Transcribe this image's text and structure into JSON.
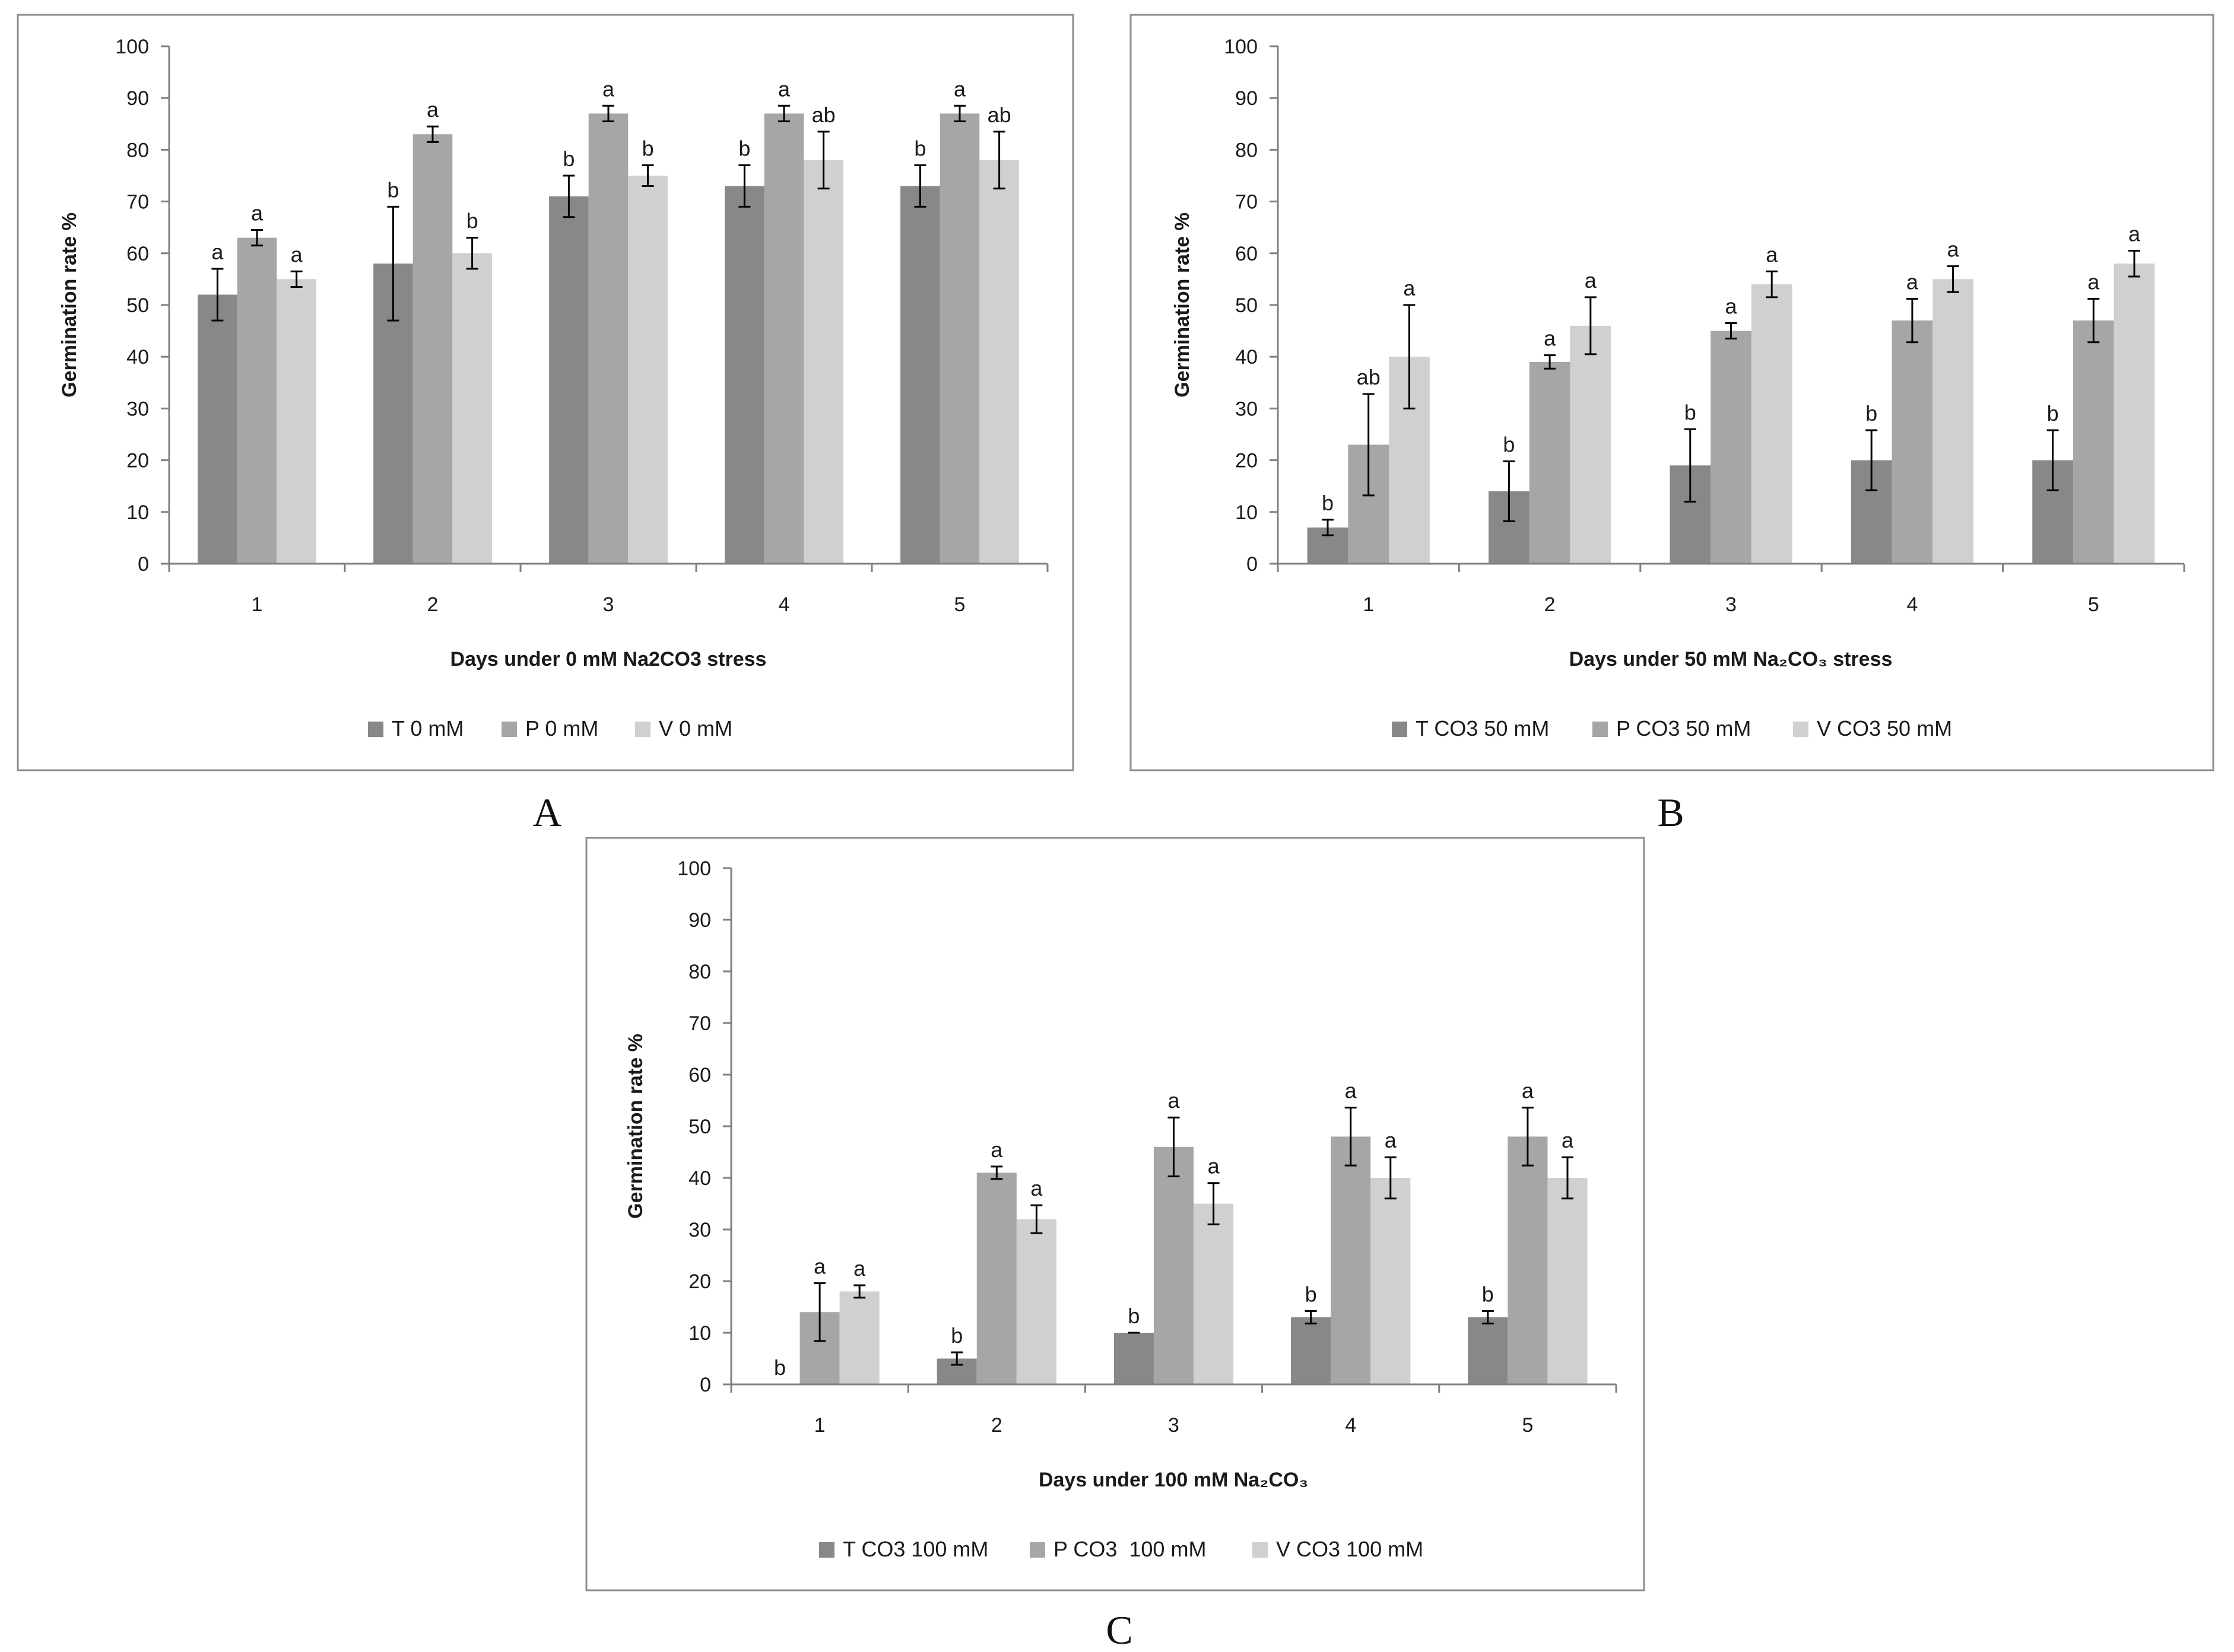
{
  "figure": {
    "colors": [
      "#888888",
      "#a6a6a6",
      "#d0d0d0"
    ]
  },
  "chart_data": [
    {
      "type": "bar",
      "panel_label": "A",
      "categories": [
        "1",
        "2",
        "3",
        "4",
        "5"
      ],
      "xlabel": "Days under 0 mM Na2CO3 stress",
      "ylabel": "Germination rate %",
      "ylim": [
        0,
        100
      ],
      "yticks": [
        "0",
        "10",
        "20",
        "30",
        "40",
        "50",
        "60",
        "70",
        "80",
        "90",
        "100"
      ],
      "series": [
        {
          "name": "T 0 mM",
          "values": [
            52,
            58,
            71,
            73,
            73
          ],
          "errors": [
            5,
            11,
            4,
            4,
            4
          ],
          "letters": [
            "a",
            "b",
            "b",
            "b",
            "b"
          ]
        },
        {
          "name": "P 0 mM",
          "values": [
            63,
            83,
            87,
            87,
            87
          ],
          "errors": [
            1.5,
            1.5,
            1.5,
            1.5,
            1.5
          ],
          "letters": [
            "a",
            "a",
            "a",
            "a",
            "a"
          ]
        },
        {
          "name": "V 0 mM",
          "values": [
            55,
            60,
            75,
            78,
            78
          ],
          "errors": [
            1.5,
            3,
            2,
            5.5,
            5.5
          ],
          "letters": [
            "a",
            "b",
            "b",
            "ab",
            "ab"
          ]
        }
      ]
    },
    {
      "type": "bar",
      "panel_label": "B",
      "categories": [
        "1",
        "2",
        "3",
        "4",
        "5"
      ],
      "xlabel": "Days under 50 mM Na₂CO₃ stress",
      "ylabel": "Germination rate %",
      "ylim": [
        0,
        100
      ],
      "yticks": [
        "0",
        "10",
        "20",
        "30",
        "40",
        "50",
        "60",
        "70",
        "80",
        "90",
        "100"
      ],
      "series": [
        {
          "name": "T CO3 50 mM",
          "values": [
            7,
            14,
            19,
            20,
            20
          ],
          "errors": [
            1.5,
            5.8,
            7,
            5.8,
            5.8
          ],
          "letters": [
            "b",
            "b",
            "b",
            "b",
            "b"
          ]
        },
        {
          "name": "P CO3 50 mM",
          "values": [
            23,
            39,
            45,
            47,
            47
          ],
          "errors": [
            9.8,
            1.3,
            1.5,
            4.2,
            4.2
          ],
          "letters": [
            "ab",
            "a",
            "a",
            "a",
            "a"
          ]
        },
        {
          "name": "V CO3 50 mM",
          "values": [
            40,
            46,
            54,
            55,
            58
          ],
          "errors": [
            10,
            5.5,
            2.5,
            2.5,
            2.5
          ],
          "letters": [
            "a",
            "a",
            "a",
            "a",
            "a"
          ]
        }
      ]
    },
    {
      "type": "bar",
      "panel_label": "C",
      "categories": [
        "1",
        "2",
        "3",
        "4",
        "5"
      ],
      "xlabel": "Days under 100 mM Na₂CO₃",
      "ylabel": "Germination rate %",
      "ylim": [
        0,
        100
      ],
      "yticks": [
        "0",
        "10",
        "20",
        "30",
        "40",
        "50",
        "60",
        "70",
        "80",
        "90",
        "100"
      ],
      "series": [
        {
          "name": "T CO3 100 mM",
          "values": [
            0,
            5,
            10,
            13,
            13
          ],
          "errors": [
            0,
            1.2,
            0,
            1.2,
            1.2
          ],
          "letters": [
            "b",
            "b",
            "b",
            "b",
            "b"
          ]
        },
        {
          "name": "P CO3  100 mM",
          "values": [
            14,
            41,
            46,
            48,
            48
          ],
          "errors": [
            5.6,
            1.2,
            5.7,
            5.6,
            5.6
          ],
          "letters": [
            "a",
            "a",
            "a",
            "a",
            "a"
          ]
        },
        {
          "name": "V CO3 100 mM",
          "values": [
            18,
            32,
            35,
            40,
            40
          ],
          "errors": [
            1.2,
            2.7,
            4,
            4,
            4
          ],
          "letters": [
            "a",
            "a",
            "a",
            "a",
            "a"
          ]
        }
      ]
    }
  ]
}
